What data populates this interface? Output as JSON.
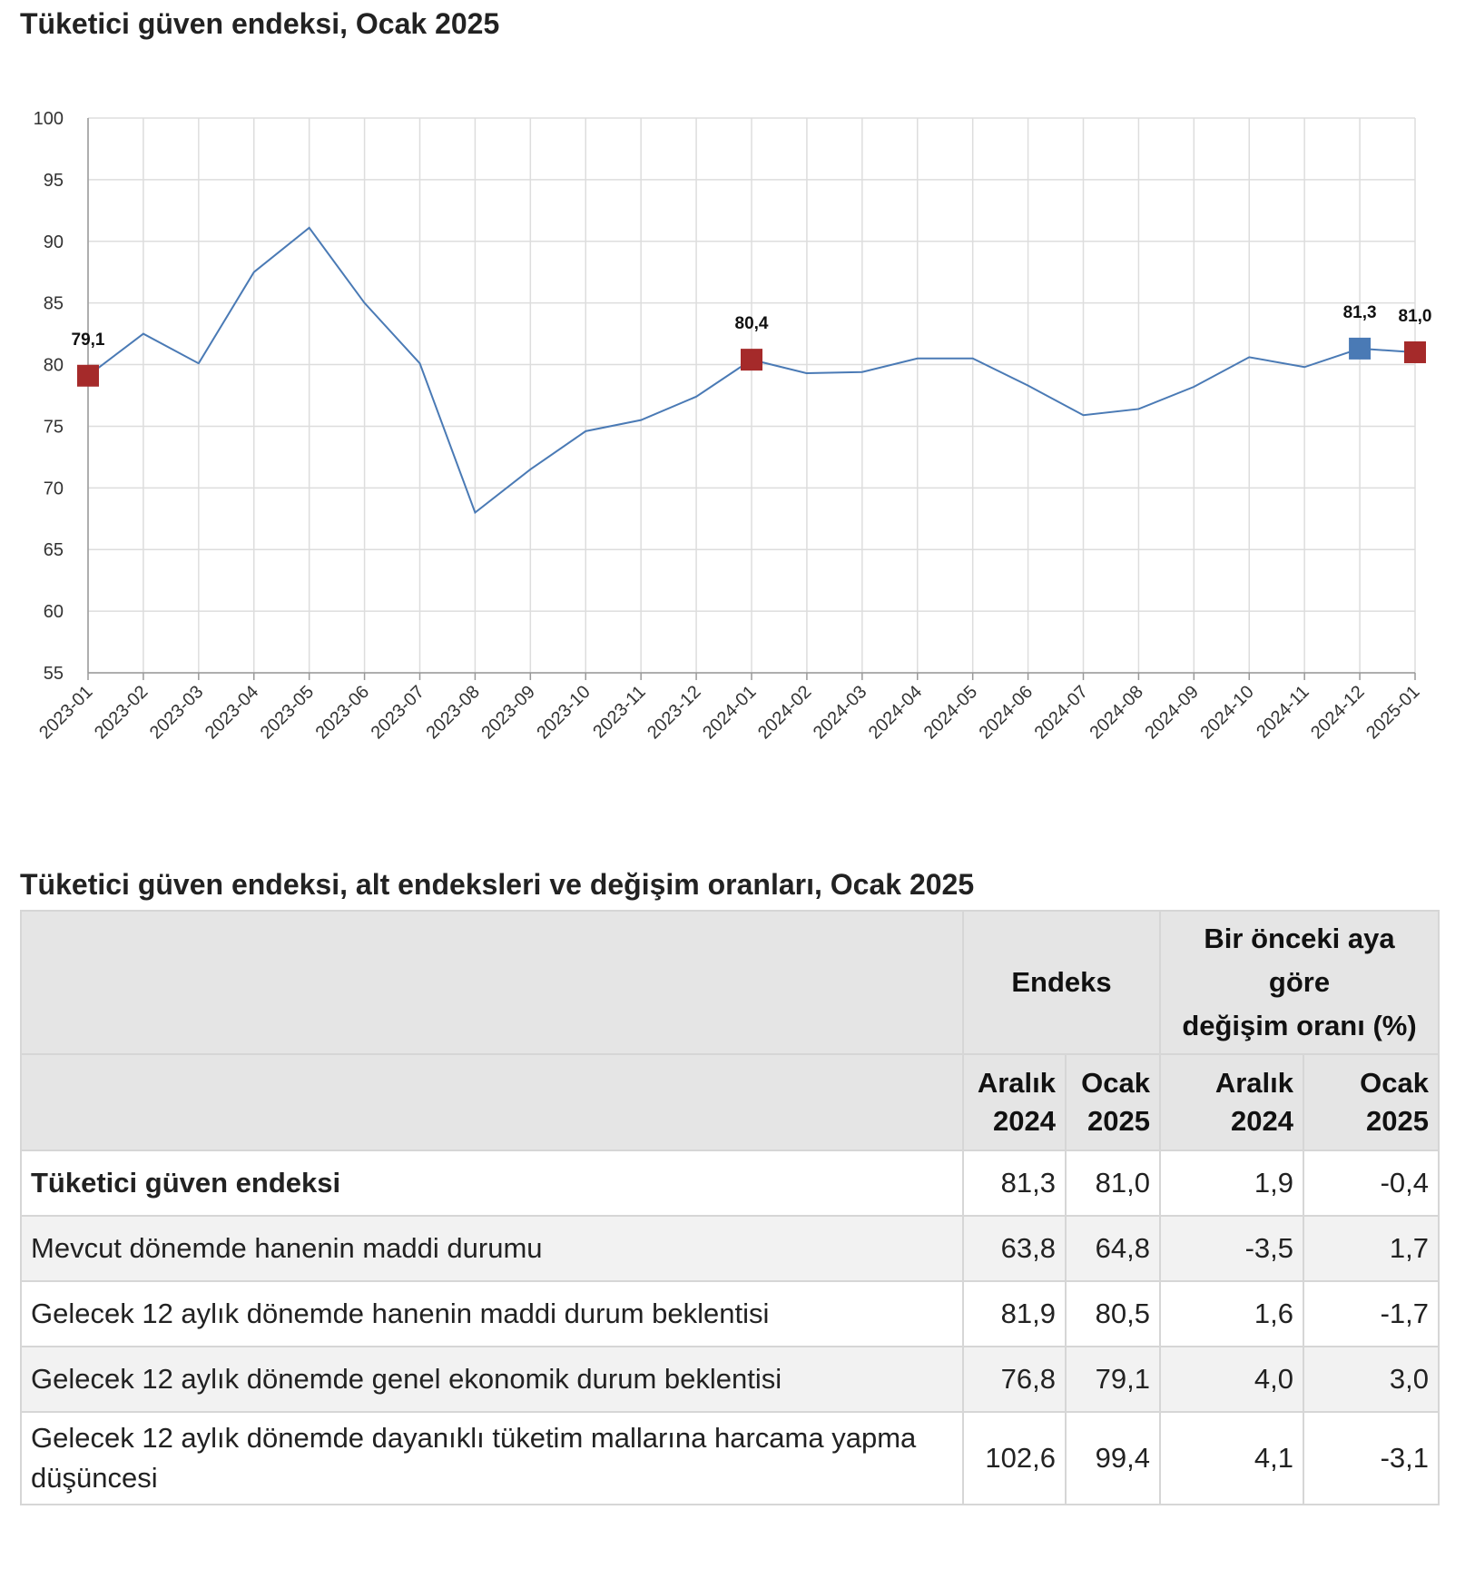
{
  "chart_data": {
    "type": "line",
    "title": "Tüketici güven endeksi, Ocak 2025",
    "categories": [
      "2023-01",
      "2023-02",
      "2023-03",
      "2023-04",
      "2023-05",
      "2023-06",
      "2023-07",
      "2023-08",
      "2023-09",
      "2023-10",
      "2023-11",
      "2023-12",
      "2024-01",
      "2024-02",
      "2024-03",
      "2024-04",
      "2024-05",
      "2024-06",
      "2024-07",
      "2024-08",
      "2024-09",
      "2024-10",
      "2024-11",
      "2024-12",
      "2025-01"
    ],
    "series": [
      {
        "values": [
          79.1,
          82.5,
          80.1,
          87.5,
          91.1,
          85.0,
          80.1,
          68.0,
          71.5,
          74.6,
          75.5,
          77.4,
          80.4,
          79.3,
          79.4,
          80.5,
          80.5,
          78.3,
          75.9,
          76.4,
          78.2,
          80.6,
          79.8,
          81.3,
          81.0
        ],
        "color": "#4a7ab5"
      }
    ],
    "ylim": [
      55,
      100
    ],
    "yticks": [
      55,
      60,
      65,
      70,
      75,
      80,
      85,
      90,
      95,
      100
    ],
    "grid": true,
    "xlabel": "",
    "ylabel": "",
    "highlighted_points": [
      {
        "x": "2023-01",
        "value": 79.1,
        "label": "79,1",
        "color": "#a52a2a"
      },
      {
        "x": "2024-01",
        "value": 80.4,
        "label": "80,4",
        "color": "#a52a2a"
      },
      {
        "x": "2024-12",
        "value": 81.3,
        "label": "81,3",
        "color": "#4a7ab5"
      },
      {
        "x": "2025-01",
        "value": 81.0,
        "label": "81,0",
        "color": "#a52a2a"
      }
    ]
  },
  "table": {
    "title": "Tüketici güven endeksi, alt endeksleri ve değişim oranları, Ocak 2025",
    "group_headers": {
      "index": "Endeks",
      "change_lines": [
        "Bir önceki aya",
        "göre",
        "değişim oranı (%)"
      ]
    },
    "sub_headers": [
      {
        "line1": "Aralık",
        "line2": "2024"
      },
      {
        "line1": "Ocak",
        "line2": "2025"
      },
      {
        "line1": "Aralık",
        "line2": "2024"
      },
      {
        "line1": "Ocak",
        "line2": "2025"
      }
    ],
    "rows": [
      {
        "label": "Tüketici güven endeksi",
        "values": [
          "81,3",
          "81,0",
          "1,9",
          "-0,4"
        ]
      },
      {
        "label": "Mevcut dönemde hanenin maddi durumu",
        "values": [
          "63,8",
          "64,8",
          "-3,5",
          "1,7"
        ]
      },
      {
        "label": "Gelecek 12 aylık dönemde hanenin maddi durum beklentisi",
        "values": [
          "81,9",
          "80,5",
          "1,6",
          "-1,7"
        ]
      },
      {
        "label": "Gelecek 12 aylık dönemde genel ekonomik durum beklentisi",
        "values": [
          "76,8",
          "79,1",
          "4,0",
          "3,0"
        ]
      },
      {
        "label": "Gelecek 12 aylık dönemde dayanıklı tüketim mallarına harcama yapma düşüncesi",
        "values": [
          "102,6",
          "99,4",
          "4,1",
          "-3,1"
        ]
      }
    ]
  }
}
